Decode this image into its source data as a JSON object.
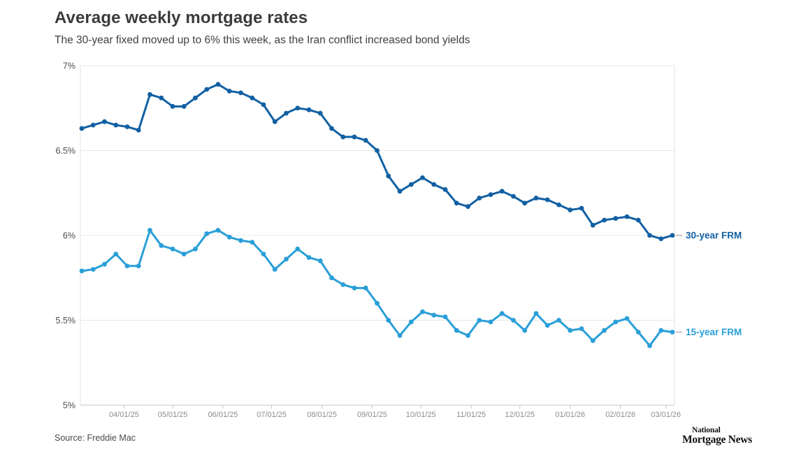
{
  "header": {
    "title": "Average weekly mortgage rates",
    "subtitle": "The 30-year fixed moved up to 6% this week, as the Iran conflict increased bond yields"
  },
  "footer": {
    "source": "Source: Freddie Mac",
    "logo_line1": "National",
    "logo_line2": "Mortgage News"
  },
  "chart_data": {
    "type": "line",
    "title": "Average weekly mortgage rates",
    "grid": true,
    "legend_position": "right-of-line-end",
    "x_axis": {
      "unit": "weekly observations, 03/06/25 through 03/05/26",
      "n_points": 53,
      "ticks": [
        {
          "label": "04/01/25",
          "day": 26
        },
        {
          "label": "05/01/25",
          "day": 56
        },
        {
          "label": "06/01/25",
          "day": 87
        },
        {
          "label": "07/01/25",
          "day": 117
        },
        {
          "label": "08/01/25",
          "day": 148
        },
        {
          "label": "09/01/25",
          "day": 179
        },
        {
          "label": "10/01/25",
          "day": 209
        },
        {
          "label": "11/01/25",
          "day": 240
        },
        {
          "label": "12/01/25",
          "day": 270
        },
        {
          "label": "01/01/26",
          "day": 301
        },
        {
          "label": "02/01/26",
          "day": 332
        },
        {
          "label": "03/01/26",
          "day": 360
        }
      ]
    },
    "y_axis": {
      "min": 5,
      "max": 7,
      "ticks": [
        {
          "label": "7%",
          "value": 7
        },
        {
          "label": "6.5%",
          "value": 6.5
        },
        {
          "label": "6%",
          "value": 6
        },
        {
          "label": "5.5%",
          "value": 5.5
        },
        {
          "label": "5%",
          "value": 5
        }
      ]
    },
    "series": [
      {
        "name": "30-year FRM",
        "color": "#1160A3",
        "values": [
          6.63,
          6.65,
          6.67,
          6.65,
          6.64,
          6.62,
          6.83,
          6.81,
          6.76,
          6.76,
          6.81,
          6.86,
          6.89,
          6.85,
          6.84,
          6.81,
          6.77,
          6.67,
          6.72,
          6.75,
          6.74,
          6.72,
          6.63,
          6.58,
          6.58,
          6.56,
          6.5,
          6.35,
          6.26,
          6.3,
          6.34,
          6.3,
          6.27,
          6.19,
          6.17,
          6.22,
          6.24,
          6.26,
          6.23,
          6.19,
          6.22,
          6.21,
          6.18,
          6.15,
          6.16,
          6.06,
          6.09,
          6.1,
          6.11,
          6.09,
          6.0,
          5.98,
          6.0
        ]
      },
      {
        "name": "15-year FRM",
        "color": "#2A9FD8",
        "values": [
          5.79,
          5.8,
          5.83,
          5.89,
          5.82,
          5.82,
          6.03,
          5.94,
          5.92,
          5.89,
          5.92,
          6.01,
          6.03,
          5.99,
          5.97,
          5.96,
          5.89,
          5.8,
          5.86,
          5.92,
          5.87,
          5.85,
          5.75,
          5.71,
          5.69,
          5.69,
          5.6,
          5.5,
          5.41,
          5.49,
          5.55,
          5.53,
          5.52,
          5.44,
          5.41,
          5.5,
          5.49,
          5.54,
          5.5,
          5.44,
          5.54,
          5.47,
          5.5,
          5.44,
          5.45,
          5.38,
          5.44,
          5.49,
          5.51,
          5.43,
          5.35,
          5.44,
          5.43
        ]
      }
    ],
    "colors": {
      "grid_line": "#e8e8e8",
      "axis_line": "#c9c9c9",
      "boundary_line": "#e3e3e3",
      "y_tick_label": "#4d4d4d",
      "x_tick_label": "#8c8c8c",
      "legend_dash": "#b3b3b3"
    }
  }
}
